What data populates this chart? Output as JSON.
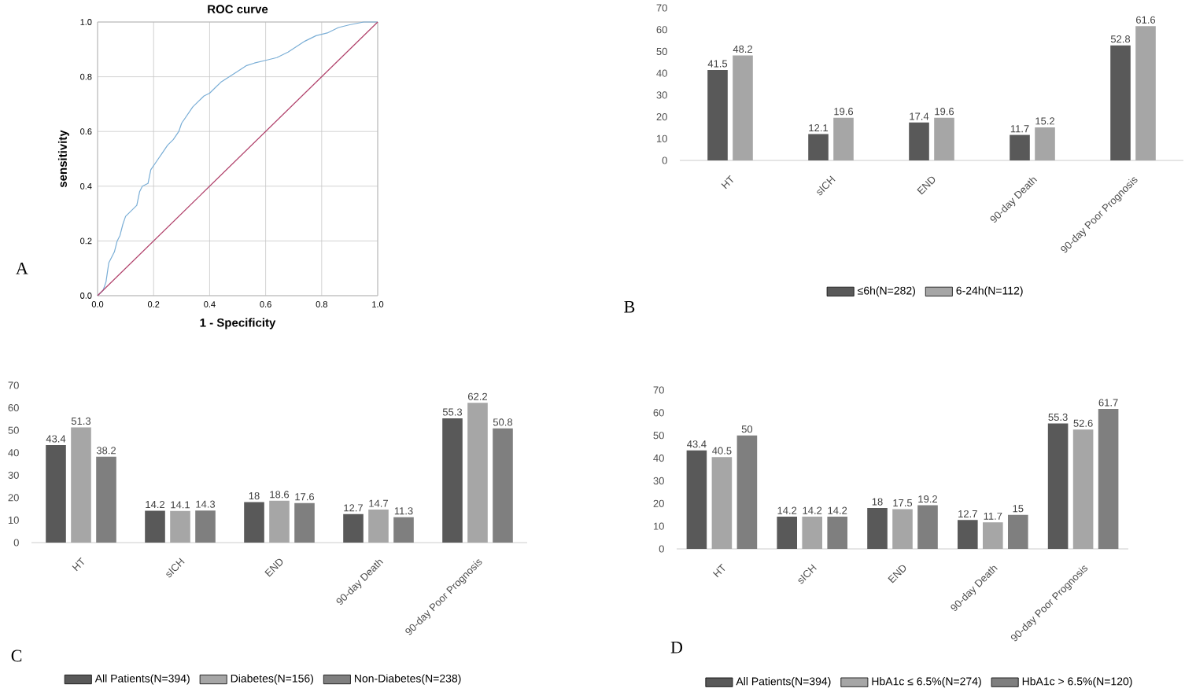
{
  "chart_data": [
    {
      "type": "line",
      "title": "ROC curve",
      "xlabel": "1 - Specificity",
      "ylabel": "sensitivity",
      "annotations": [
        "A"
      ],
      "grid": true,
      "xlim": [
        0,
        1
      ],
      "ylim": [
        0,
        1
      ],
      "xticks": [
        {
          "value": 0,
          "label": "0.0"
        },
        {
          "value": 0.2,
          "label": "0.2"
        },
        {
          "value": 0.4,
          "label": "0.4"
        },
        {
          "value": 0.6,
          "label": "0.6"
        },
        {
          "value": 0.8,
          "label": "0.8"
        },
        {
          "value": 1,
          "label": "1.0"
        }
      ],
      "yticks": [
        {
          "value": 0,
          "label": "0.0"
        },
        {
          "value": 0.2,
          "label": "0.2"
        },
        {
          "value": 0.4,
          "label": "0.4"
        },
        {
          "value": 0.6,
          "label": "0.6"
        },
        {
          "value": 0.8,
          "label": "0.8"
        },
        {
          "value": 1,
          "label": "1.0"
        }
      ],
      "series": [
        {
          "color": "#7aaed6",
          "x": [
            0,
            0.02,
            0.03,
            0.04,
            0.05,
            0.06,
            0.07,
            0.08,
            0.09,
            0.1,
            0.12,
            0.14,
            0.15,
            0.16,
            0.18,
            0.19,
            0.21,
            0.23,
            0.25,
            0.27,
            0.29,
            0.3,
            0.32,
            0.34,
            0.36,
            0.38,
            0.4,
            0.42,
            0.44,
            0.47,
            0.5,
            0.53,
            0.56,
            0.6,
            0.64,
            0.68,
            0.71,
            0.74,
            0.78,
            0.82,
            0.86,
            0.9,
            0.95,
            1
          ],
          "values": [
            0,
            0.02,
            0.05,
            0.12,
            0.14,
            0.16,
            0.2,
            0.22,
            0.26,
            0.29,
            0.31,
            0.33,
            0.38,
            0.4,
            0.41,
            0.46,
            0.49,
            0.52,
            0.55,
            0.57,
            0.6,
            0.63,
            0.66,
            0.69,
            0.71,
            0.73,
            0.74,
            0.76,
            0.78,
            0.8,
            0.82,
            0.84,
            0.85,
            0.86,
            0.87,
            0.89,
            0.91,
            0.93,
            0.95,
            0.96,
            0.98,
            0.99,
            1,
            1
          ]
        },
        {
          "color": "#b0406a",
          "x": [
            0,
            1
          ],
          "values": [
            0,
            1
          ]
        }
      ]
    },
    {
      "type": "bar",
      "annotations": [
        "B"
      ],
      "categories": [
        "HT",
        "sICH",
        "END",
        "90-day Death",
        "90-day Poor Prognosis"
      ],
      "ylim": [
        0,
        70
      ],
      "yticks": [
        0,
        10,
        20,
        30,
        40,
        50,
        60,
        70
      ],
      "data_labels": true,
      "legend": "bottom",
      "series": [
        {
          "name": "≤6h(N=282)",
          "color": "#595959",
          "values": [
            41.5,
            12.1,
            17.4,
            11.7,
            52.8
          ]
        },
        {
          "name": "6-24h(N=112)",
          "color": "#a6a6a6",
          "values": [
            48.2,
            19.6,
            19.6,
            15.2,
            61.6
          ]
        }
      ]
    },
    {
      "type": "bar",
      "annotations": [
        "C"
      ],
      "categories": [
        "HT",
        "sICH",
        "END",
        "90-day Death",
        "90-day Poor Prognosis"
      ],
      "ylim": [
        0,
        70
      ],
      "yticks": [
        0,
        10,
        20,
        30,
        40,
        50,
        60,
        70
      ],
      "data_labels": true,
      "legend": "bottom",
      "series": [
        {
          "name": "All Patients(N=394)",
          "color": "#595959",
          "values": [
            43.4,
            14.2,
            18,
            12.7,
            55.3
          ]
        },
        {
          "name": "Diabetes(N=156)",
          "color": "#a6a6a6",
          "values": [
            51.3,
            14.1,
            18.6,
            14.7,
            62.2
          ]
        },
        {
          "name": "Non-Diabetes(N=238)",
          "color": "#7f7f7f",
          "values": [
            38.2,
            14.3,
            17.6,
            11.3,
            50.8
          ]
        }
      ]
    },
    {
      "type": "bar",
      "annotations": [
        "D"
      ],
      "categories": [
        "HT",
        "sICH",
        "END",
        "90-day Death",
        "90-day Poor Prognosis"
      ],
      "ylim": [
        0,
        70
      ],
      "yticks": [
        0,
        10,
        20,
        30,
        40,
        50,
        60,
        70
      ],
      "data_labels": true,
      "legend": "bottom",
      "series": [
        {
          "name": "All Patients(N=394)",
          "color": "#595959",
          "values": [
            43.4,
            14.2,
            18,
            12.7,
            55.3
          ]
        },
        {
          "name": "HbA1c ≤ 6.5%(N=274)",
          "color": "#a6a6a6",
          "values": [
            40.5,
            14.2,
            17.5,
            11.7,
            52.6
          ]
        },
        {
          "name": "HbA1c > 6.5%(N=120)",
          "color": "#7f7f7f",
          "values": [
            50,
            14.2,
            19.2,
            15,
            61.7
          ]
        }
      ]
    }
  ]
}
